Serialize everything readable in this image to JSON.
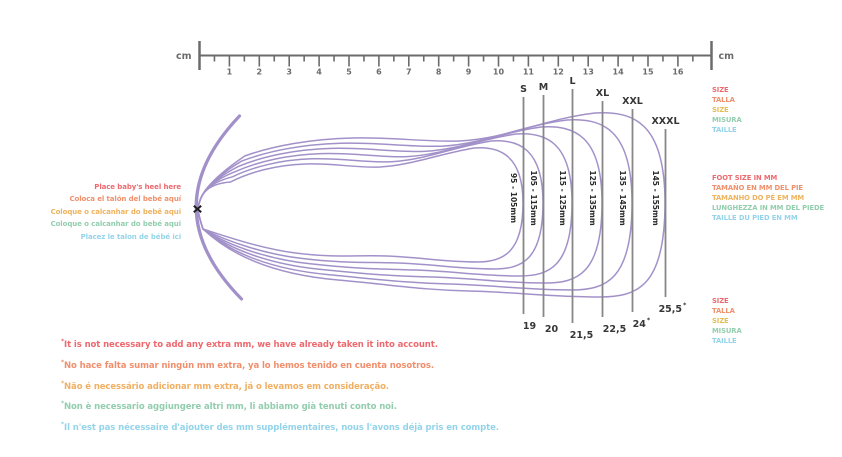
{
  "ruler": {
    "unit_left": "cm",
    "unit_right": "cm",
    "numbers": [
      "1",
      "2",
      "3",
      "4",
      "5",
      "6",
      "7",
      "8",
      "9",
      "10",
      "11",
      "12",
      "13",
      "14",
      "15",
      "16"
    ]
  },
  "heel": {
    "marker_label": "x",
    "instructions": [
      {
        "lang": "en",
        "text": "Place baby's heel here",
        "color": "#ec6a6f"
      },
      {
        "lang": "es",
        "text": "Coloca el talón del bebé aquí",
        "color": "#f0906d"
      },
      {
        "lang": "pt-br",
        "text": "Coloque o calcanhar do bebê aqui",
        "color": "#eeb35f"
      },
      {
        "lang": "pt",
        "text": "Coloque o calcanhar do bebé aqui",
        "color": "#92cdae"
      },
      {
        "lang": "fr",
        "text": "Placez le talon de bébé ici",
        "color": "#94d4ea"
      }
    ]
  },
  "sizes": [
    {
      "label": "S",
      "mm_range": "95 - 105mm",
      "eu_size": "19",
      "asterisk": false
    },
    {
      "label": "M",
      "mm_range": "105 - 115mm",
      "eu_size": "20",
      "asterisk": false
    },
    {
      "label": "L",
      "mm_range": "115 - 125mm",
      "eu_size": "21,5",
      "asterisk": false
    },
    {
      "label": "XL",
      "mm_range": "125 - 135mm",
      "eu_size": "22,5",
      "asterisk": false
    },
    {
      "label": "XXL",
      "mm_range": "135 - 145mm",
      "eu_size": "24",
      "asterisk": true
    },
    {
      "label": "XXXL",
      "mm_range": "145 - 155mm",
      "eu_size": "25,5",
      "asterisk": true
    }
  ],
  "legend_size_top": [
    {
      "text": "SIZE",
      "color": "#ec6a6f"
    },
    {
      "text": "TALLA",
      "color": "#f0906d"
    },
    {
      "text": "SIZE",
      "color": "#e5bd55"
    },
    {
      "text": "MISURA",
      "color": "#92cdae"
    },
    {
      "text": "TAILLE",
      "color": "#94d4ea"
    }
  ],
  "legend_foot_size": [
    {
      "text": "FOOT SIZE IN MM",
      "color": "#ec6a6f"
    },
    {
      "text": "TAMAÑO EN MM DEL PIE",
      "color": "#f0906d"
    },
    {
      "text": "TAMANHO DO PÉ EM MM",
      "color": "#eeb35f"
    },
    {
      "text": "LUNGHEZZA IN MM DEL PIEDE",
      "color": "#92cdae"
    },
    {
      "text": "TAILLE DU PIED EN MM",
      "color": "#94d4ea"
    }
  ],
  "legend_size_bottom": [
    {
      "text": "SIZE",
      "color": "#ec6a6f"
    },
    {
      "text": "TALLA",
      "color": "#f0906d"
    },
    {
      "text": "SIZE",
      "color": "#e5bd55"
    },
    {
      "text": "MISURA",
      "color": "#92cdae"
    },
    {
      "text": "TAILLE",
      "color": "#94d4ea"
    }
  ],
  "footnotes": {
    "marker": "*",
    "lines": [
      {
        "lang": "en",
        "text": "It is not necessary to add any extra mm, we have already taken it into account.",
        "color": "#ec6a6f"
      },
      {
        "lang": "es",
        "text": "No hace falta sumar ningún mm extra, ya lo hemos tenido en cuenta nosotros.",
        "color": "#f08f6d"
      },
      {
        "lang": "pt",
        "text": "Não é necessário adicionar mm extra, já o levamos em consideração.",
        "color": "#f1af62"
      },
      {
        "lang": "it",
        "text": "Non è necessario aggiungere altri mm, li abbiamo già tenuti conto noi.",
        "color": "#92cdae"
      },
      {
        "lang": "fr",
        "text": "Il n'est pas nécessaire d'ajouter des mm supplémentaires, nous l'avons déjà pris en compte.",
        "color": "#94d4ea"
      }
    ]
  },
  "colors": {
    "outline_purple": "#a291c9",
    "ruler_gray": "#6b6b6b",
    "marker_line_gray": "#878787",
    "ink": "#363636",
    "heel_marker_black": "#1d1d1d"
  }
}
